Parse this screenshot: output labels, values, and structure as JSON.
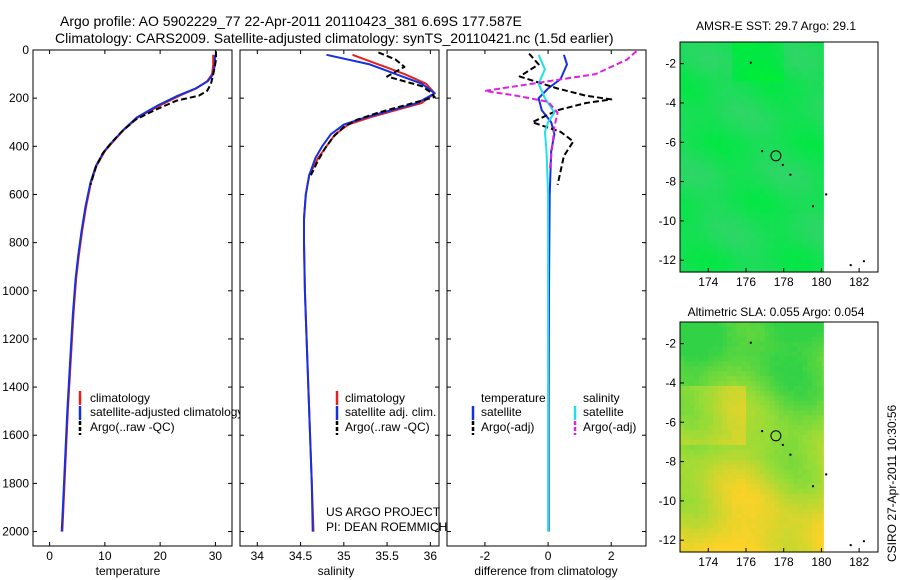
{
  "title": {
    "line1": "Argo profile: AO 5902229_77 22-Apr-2011 20110423_381 6.69S 177.587E",
    "line2": "Climatology: CARS2009. Satellite-adjusted climatology: synTS_20110421.nc (1.5d earlier)"
  },
  "credit": {
    "line1": "US ARGO PROJECT",
    "line2": "PI: DEAN ROEMMICH"
  },
  "timestamp": "CSIRO 27-Apr-2011 10:30:56",
  "colors": {
    "climatology": "#e8201c",
    "satellite": "#1530e0",
    "argo": "#000000",
    "sat_salinity": "#22e0e8",
    "argo_salinity": "#e020e0",
    "map_outline": "#000000"
  },
  "chart_data": [
    {
      "type": "line",
      "id": "temperature",
      "xlabel": "temperature",
      "ylabel": "",
      "xlim": [
        -3,
        33
      ],
      "ylim": [
        2060,
        0
      ],
      "xticks": [
        0,
        10,
        20,
        30
      ],
      "yticks": [
        0,
        200,
        400,
        600,
        800,
        1000,
        1200,
        1400,
        1600,
        1800,
        2000
      ],
      "legend": {
        "placement": "lower-middle",
        "items": [
          "climatology",
          "satellite-adjusted climatology",
          "Argo(..raw -QC)"
        ]
      },
      "series": [
        {
          "name": "climatology",
          "color_key": "climatology",
          "dash": false,
          "points": [
            [
              29.6,
              20
            ],
            [
              29.6,
              60
            ],
            [
              29.4,
              100
            ],
            [
              28.5,
              130
            ],
            [
              26.5,
              160
            ],
            [
              23.5,
              190
            ],
            [
              20,
              230
            ],
            [
              16,
              280
            ],
            [
              13.5,
              330
            ],
            [
              11.5,
              380
            ],
            [
              10,
              420
            ],
            [
              8.5,
              480
            ],
            [
              7.5,
              550
            ],
            [
              6.6,
              650
            ],
            [
              5.9,
              750
            ],
            [
              5.3,
              850
            ],
            [
              4.8,
              950
            ],
            [
              4.3,
              1100
            ],
            [
              3.8,
              1300
            ],
            [
              3.3,
              1500
            ],
            [
              2.9,
              1700
            ],
            [
              2.5,
              1900
            ],
            [
              2.3,
              2000
            ]
          ]
        },
        {
          "name": "satellite-adjusted climatology",
          "color_key": "satellite",
          "dash": false,
          "points": [
            [
              29.9,
              20
            ],
            [
              29.9,
              60
            ],
            [
              29.6,
              100
            ],
            [
              28.6,
              130
            ],
            [
              26.4,
              160
            ],
            [
              23.2,
              190
            ],
            [
              19.6,
              230
            ],
            [
              15.8,
              280
            ],
            [
              13.4,
              330
            ],
            [
              11.4,
              380
            ],
            [
              9.9,
              420
            ],
            [
              8.4,
              480
            ],
            [
              7.4,
              550
            ],
            [
              6.5,
              650
            ],
            [
              5.8,
              750
            ],
            [
              5.2,
              850
            ],
            [
              4.7,
              950
            ],
            [
              4.2,
              1100
            ],
            [
              3.7,
              1300
            ],
            [
              3.2,
              1500
            ],
            [
              2.8,
              1700
            ],
            [
              2.4,
              1900
            ],
            [
              2.2,
              2000
            ]
          ]
        },
        {
          "name": "Argo(..raw -QC)",
          "color_key": "argo",
          "dash": true,
          "points": [
            [
              30.1,
              5
            ],
            [
              30.1,
              40
            ],
            [
              29.8,
              80
            ],
            [
              29.5,
              110
            ],
            [
              29.2,
              140
            ],
            [
              28.5,
              170
            ],
            [
              27,
              190
            ],
            [
              23,
              210
            ],
            [
              19,
              250
            ],
            [
              15.5,
              290
            ],
            [
              13,
              340
            ],
            [
              11,
              390
            ],
            [
              9.6,
              430
            ],
            [
              8.3,
              490
            ],
            [
              7.4,
              560
            ]
          ]
        }
      ]
    },
    {
      "type": "line",
      "id": "salinity",
      "xlabel": "salinity",
      "ylabel": "",
      "xlim": [
        33.8,
        36.1
      ],
      "ylim": [
        2060,
        0
      ],
      "xticks": [
        34,
        34.5,
        35,
        35.5,
        36
      ],
      "yticks": [
        0,
        200,
        400,
        600,
        800,
        1000,
        1200,
        1400,
        1600,
        1800,
        2000
      ],
      "legend": {
        "placement": "lower-right",
        "items": [
          "climatology",
          "satellite adj. clim.",
          "Argo(..raw -QC)"
        ]
      },
      "series": [
        {
          "name": "climatology",
          "color_key": "climatology",
          "dash": false,
          "points": [
            [
              35.1,
              20
            ],
            [
              35.4,
              60
            ],
            [
              35.7,
              100
            ],
            [
              35.95,
              140
            ],
            [
              36.05,
              180
            ],
            [
              35.9,
              220
            ],
            [
              35.6,
              250
            ],
            [
              35.3,
              280
            ],
            [
              35.05,
              310
            ],
            [
              34.9,
              350
            ],
            [
              34.8,
              400
            ],
            [
              34.7,
              450
            ],
            [
              34.6,
              520
            ],
            [
              34.56,
              600
            ],
            [
              34.54,
              700
            ],
            [
              34.54,
              800
            ],
            [
              34.55,
              1000
            ],
            [
              34.57,
              1200
            ],
            [
              34.6,
              1500
            ],
            [
              34.63,
              1800
            ],
            [
              34.65,
              2000
            ]
          ]
        },
        {
          "name": "satellite adj. clim.",
          "color_key": "satellite",
          "dash": false,
          "points": [
            [
              34.8,
              20
            ],
            [
              35.3,
              60
            ],
            [
              35.6,
              100
            ],
            [
              35.9,
              140
            ],
            [
              36.05,
              180
            ],
            [
              35.85,
              220
            ],
            [
              35.55,
              250
            ],
            [
              35.25,
              280
            ],
            [
              35,
              310
            ],
            [
              34.85,
              350
            ],
            [
              34.75,
              400
            ],
            [
              34.67,
              450
            ],
            [
              34.6,
              520
            ],
            [
              34.56,
              600
            ],
            [
              34.54,
              700
            ],
            [
              34.54,
              800
            ],
            [
              34.55,
              1000
            ],
            [
              34.57,
              1200
            ],
            [
              34.6,
              1500
            ],
            [
              34.63,
              1800
            ],
            [
              34.64,
              2000
            ]
          ]
        },
        {
          "name": "Argo(..raw -QC)",
          "color_key": "argo",
          "dash": true,
          "points": [
            [
              35.4,
              10
            ],
            [
              35.6,
              40
            ],
            [
              35.7,
              70
            ],
            [
              35.5,
              110
            ],
            [
              35.9,
              150
            ],
            [
              36.0,
              175
            ],
            [
              36.05,
              195
            ],
            [
              35.7,
              230
            ],
            [
              35.4,
              260
            ],
            [
              35.15,
              290
            ],
            [
              35.0,
              320
            ],
            [
              34.88,
              360
            ],
            [
              34.78,
              410
            ],
            [
              34.7,
              460
            ],
            [
              34.62,
              520
            ]
          ]
        }
      ]
    },
    {
      "type": "line",
      "id": "difference",
      "xlabel": "difference from climatology",
      "ylabel": "",
      "xlim": [
        -3.2,
        3.1
      ],
      "ylim": [
        2060,
        0
      ],
      "xticks": [
        -2,
        0,
        2
      ],
      "yticks": [
        0,
        200,
        400,
        600,
        800,
        1000,
        1200,
        1400,
        1600,
        1800,
        2000
      ],
      "legend": {
        "placement": "lower-middle",
        "headers": [
          "temperature",
          "salinity"
        ],
        "items": [
          "satellite",
          "Argo(-adj)",
          "satellite",
          "Argo(-adj)"
        ]
      },
      "series": [
        {
          "name": "temperature satellite",
          "color_key": "satellite",
          "dash": false,
          "points": [
            [
              0.5,
              20
            ],
            [
              0.6,
              60
            ],
            [
              0.4,
              120
            ],
            [
              0.0,
              160
            ],
            [
              -0.3,
              200
            ],
            [
              -0.2,
              250
            ],
            [
              0.1,
              300
            ],
            [
              0.2,
              350
            ],
            [
              0.1,
              420
            ],
            [
              0.05,
              600
            ],
            [
              0.03,
              1000
            ],
            [
              0.02,
              1500
            ],
            [
              0.02,
              2000
            ]
          ]
        },
        {
          "name": "temperature Argo(-adj)",
          "color_key": "argo",
          "dash": true,
          "points": [
            [
              -0.6,
              15
            ],
            [
              -0.3,
              60
            ],
            [
              -0.9,
              110
            ],
            [
              0.3,
              160
            ],
            [
              1.2,
              190
            ],
            [
              2.0,
              205
            ],
            [
              1.2,
              220
            ],
            [
              0.3,
              250
            ],
            [
              -0.5,
              300
            ],
            [
              0.4,
              340
            ],
            [
              0.8,
              380
            ],
            [
              0.5,
              440
            ],
            [
              0.3,
              560
            ]
          ]
        },
        {
          "name": "salinity satellite",
          "color_key": "sat_salinity",
          "dash": false,
          "points": [
            [
              -0.3,
              20
            ],
            [
              -0.1,
              80
            ],
            [
              -0.3,
              140
            ],
            [
              -0.1,
              200
            ],
            [
              0.2,
              260
            ],
            [
              0.0,
              300
            ],
            [
              -0.1,
              340
            ],
            [
              -0.05,
              420
            ],
            [
              0.0,
              600
            ],
            [
              0.0,
              1000
            ],
            [
              0.0,
              1500
            ],
            [
              0.0,
              2000
            ]
          ]
        },
        {
          "name": "salinity Argo(-adj)",
          "color_key": "argo_salinity",
          "dash": true,
          "points": [
            [
              2.8,
              5
            ],
            [
              2.5,
              40
            ],
            [
              1.5,
              100
            ],
            [
              -1.0,
              150
            ],
            [
              -2.0,
              170
            ],
            [
              -1.0,
              190
            ],
            [
              0.0,
              215
            ],
            [
              0.3,
              260
            ],
            [
              0.2,
              320
            ],
            [
              0.15,
              380
            ],
            [
              0.1,
              440
            ],
            [
              0.05,
              500
            ]
          ]
        }
      ]
    }
  ],
  "maps": [
    {
      "id": "sst",
      "title": "AMSR-E SST: 29.7 Argo: 29.1",
      "xlim": [
        172.5,
        183
      ],
      "ylim": [
        -12.6,
        -0.9
      ],
      "xticks": [
        174,
        176,
        178,
        180,
        182
      ],
      "yticks": [
        -2,
        -4,
        -6,
        -8,
        -10,
        -12
      ],
      "data_extent": [
        172.5,
        180.1
      ],
      "profile": {
        "lon": 177.587,
        "lat": -6.69
      },
      "colormap": "sst"
    },
    {
      "id": "sla",
      "title": "Altimetric SLA: 0.055 Argo: 0.054",
      "xlim": [
        172.5,
        183
      ],
      "ylim": [
        -12.6,
        -0.9
      ],
      "xticks": [
        174,
        176,
        178,
        180,
        182
      ],
      "yticks": [
        -2,
        -4,
        -6,
        -8,
        -10,
        -12
      ],
      "data_extent": [
        172.5,
        180.1
      ],
      "profile": {
        "lon": 177.587,
        "lat": -6.69
      },
      "colormap": "sla"
    }
  ]
}
